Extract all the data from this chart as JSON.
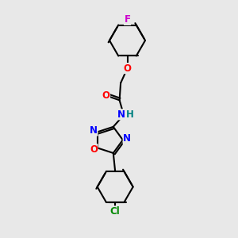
{
  "bg_color": "#e8e8e8",
  "bond_color": "#000000",
  "line_width": 1.5,
  "atom_colors": {
    "C": "#000000",
    "N": "#0000ff",
    "O": "#ff0000",
    "F": "#cc00cc",
    "Cl": "#008800",
    "H": "#008080"
  },
  "font_size": 8.5
}
